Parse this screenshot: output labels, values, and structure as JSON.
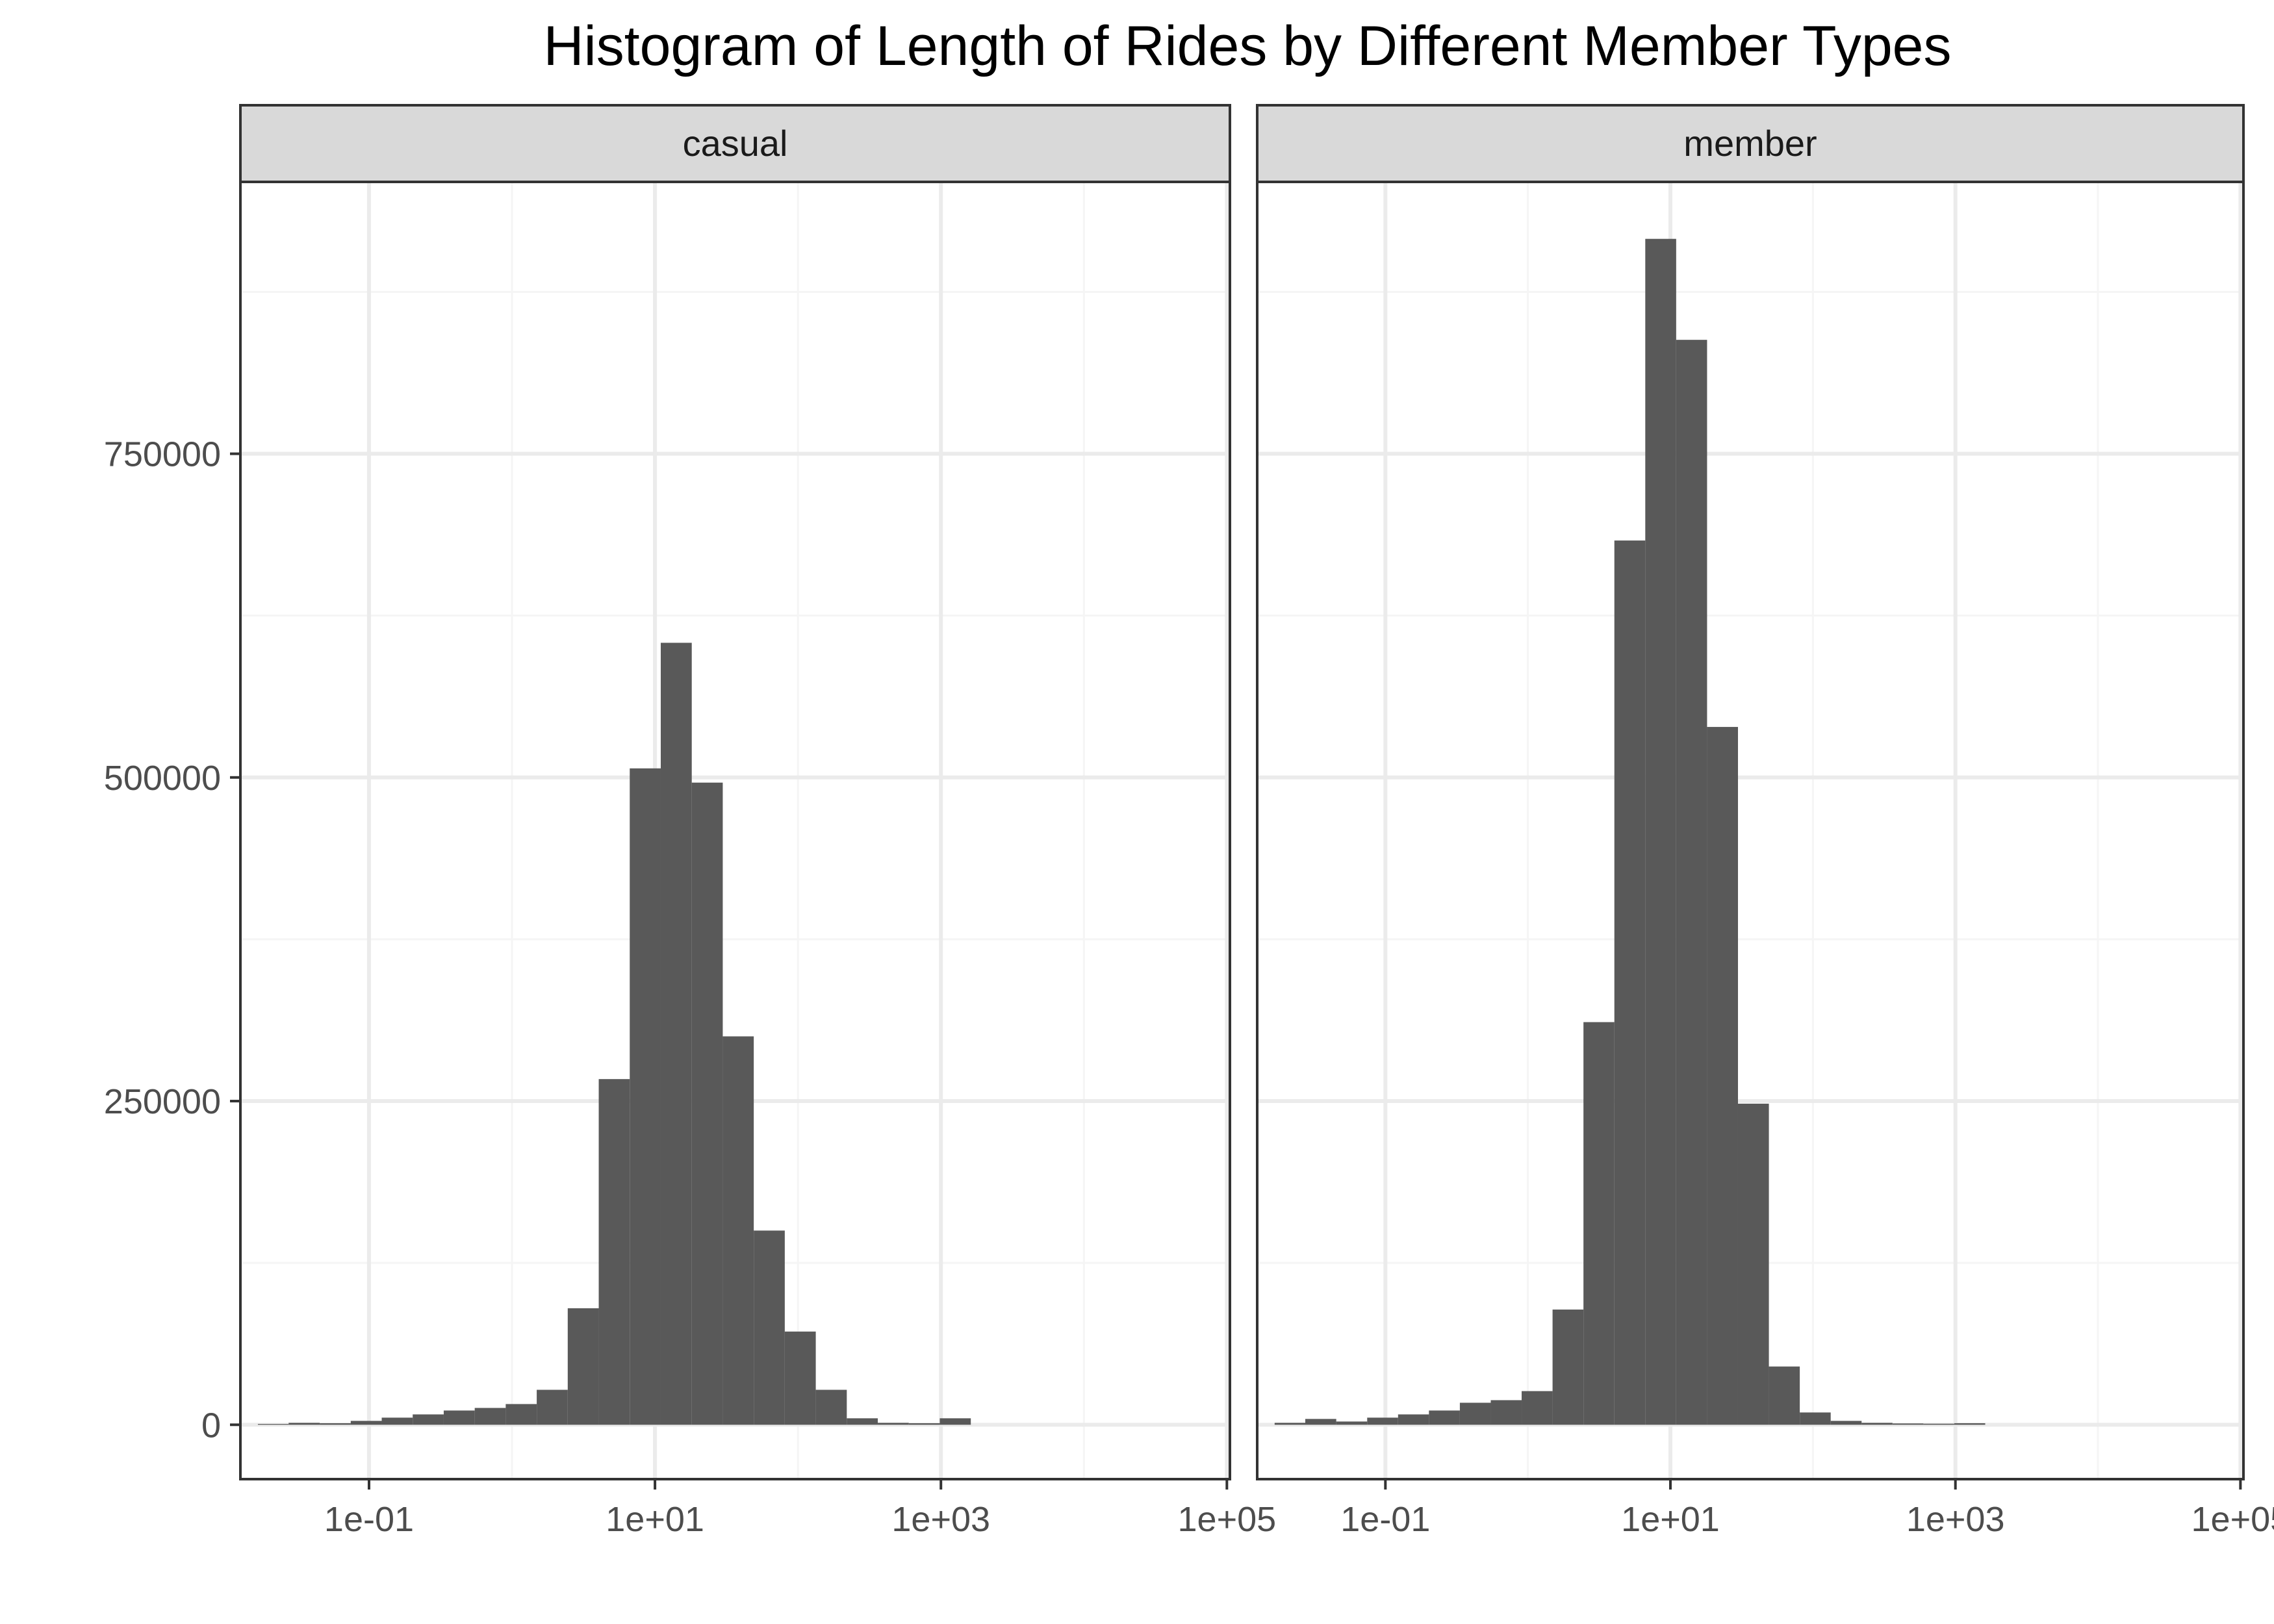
{
  "chart_data": {
    "type": "bar",
    "title": "Histogram of Length of Rides by Different Member Types",
    "xlabel": "",
    "ylabel": "",
    "x_scale": "log10",
    "xlim": [
      0.0126,
      105000
    ],
    "ylim": [
      -42000,
      960000
    ],
    "x_ticks": [
      {
        "value": 0.1,
        "label": "1e-01"
      },
      {
        "value": 10,
        "label": "1e+01"
      },
      {
        "value": 1000,
        "label": "1e+03"
      },
      {
        "value": 100000,
        "label": "1e+05"
      }
    ],
    "y_ticks": [
      {
        "value": 0,
        "label": "0"
      },
      {
        "value": 250000,
        "label": "250000"
      },
      {
        "value": 500000,
        "label": "500000"
      },
      {
        "value": 750000,
        "label": "750000"
      }
    ],
    "grid": true,
    "bin_edges": [
      0.0167,
      0.0274,
      0.0452,
      0.0745,
      0.1227,
      0.2021,
      0.333,
      0.5486,
      0.9038,
      1.4893,
      2.4538,
      4.0429,
      6.6612,
      10.975,
      18.083,
      29.793,
      49.088,
      80.879,
      133.26,
      219.56,
      361.75,
      596.03,
      982.03,
      1618
    ],
    "panels": [
      {
        "name": "casual",
        "values": [
          600,
          1500,
          1200,
          3000,
          5500,
          8000,
          11000,
          13000,
          16000,
          27000,
          90000,
          267000,
          507000,
          604000,
          496000,
          300000,
          150000,
          72000,
          27000,
          5000,
          1500,
          1200,
          5000
        ]
      },
      {
        "name": "member",
        "values": [
          1500,
          4500,
          2500,
          5500,
          8000,
          11000,
          17000,
          19000,
          26000,
          89000,
          311000,
          683000,
          916000,
          838000,
          539000,
          248000,
          45000,
          9500,
          3000,
          1500,
          1000,
          800,
          1200
        ]
      }
    ]
  },
  "colors": {
    "bar": "#595959",
    "strip_fill": "#d9d9d9",
    "panel_border": "#333333",
    "grid_major": "#ebebeb",
    "grid_minor": "#f5f5f5"
  }
}
